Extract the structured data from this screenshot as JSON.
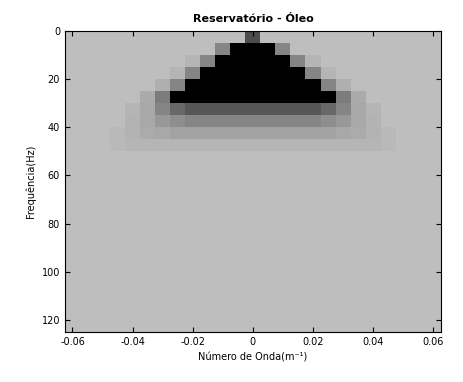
{
  "chart_data": {
    "type": "heatmap",
    "title": "Reservatório - Óleo",
    "x_label": "Número de Onda(m⁻¹)",
    "y_label": "Frequência(Hz)",
    "xlim": [
      -0.0625,
      0.0625
    ],
    "ylim": [
      125,
      0
    ],
    "xticks": [
      -0.06,
      -0.04,
      -0.02,
      0,
      0.02,
      0.04,
      0.06
    ],
    "yticks": [
      0,
      20,
      40,
      60,
      80,
      100,
      120
    ],
    "x": [
      -0.06,
      -0.055,
      -0.05,
      -0.045,
      -0.04,
      -0.035,
      -0.03,
      -0.025,
      -0.02,
      -0.015,
      -0.01,
      -0.005,
      0,
      0.005,
      0.01,
      0.015,
      0.02,
      0.025,
      0.03,
      0.035,
      0.04,
      0.045,
      0.05,
      0.055,
      0.06
    ],
    "y": [
      2.5,
      7.5,
      12.5,
      17.5,
      22.5,
      27.5,
      32.5,
      37.5,
      42.5,
      47.5,
      52.5,
      57.5,
      62.5,
      67.5,
      72.5,
      77.5,
      82.5,
      87.5,
      92.5,
      97.5,
      102.5,
      107.5,
      112.5,
      117.5,
      122.5
    ],
    "cells": [
      [
        0,
        0,
        0,
        0,
        0,
        0,
        0,
        0,
        0,
        0,
        0,
        0,
        0.6,
        0,
        0,
        0,
        0,
        0,
        0,
        0,
        0,
        0,
        0,
        0,
        0
      ],
      [
        0,
        0,
        0,
        0,
        0,
        0,
        0,
        0,
        0,
        0,
        0.3,
        1,
        1,
        1,
        0.3,
        0,
        0,
        0,
        0,
        0,
        0,
        0,
        0,
        0,
        0
      ],
      [
        0,
        0,
        0,
        0,
        0,
        0,
        0,
        0,
        0.05,
        0.3,
        1,
        1,
        1,
        1,
        1,
        0.3,
        0.05,
        0,
        0,
        0,
        0,
        0,
        0,
        0,
        0
      ],
      [
        0,
        0,
        0,
        0,
        0,
        0,
        0,
        0.05,
        0.3,
        1,
        1,
        1,
        1,
        1,
        1,
        1,
        0.3,
        0.05,
        0,
        0,
        0,
        0,
        0,
        0,
        0
      ],
      [
        0,
        0,
        0,
        0,
        0,
        0,
        0.08,
        0.3,
        1,
        1,
        1,
        1,
        1,
        1,
        1,
        1,
        1,
        0.3,
        0.08,
        0,
        0,
        0,
        0,
        0,
        0
      ],
      [
        0,
        0,
        0,
        0,
        0,
        0.1,
        0.35,
        1,
        1,
        1,
        1,
        1,
        1,
        1,
        1,
        1,
        1,
        1,
        0.35,
        0.1,
        0,
        0,
        0,
        0,
        0
      ],
      [
        0,
        0,
        0,
        0,
        0.05,
        0.12,
        0.3,
        0.45,
        0.55,
        0.55,
        0.55,
        0.55,
        0.55,
        0.55,
        0.55,
        0.55,
        0.55,
        0.45,
        0.3,
        0.12,
        0.05,
        0,
        0,
        0,
        0
      ],
      [
        0,
        0,
        0,
        0,
        0.06,
        0.12,
        0.2,
        0.25,
        0.3,
        0.3,
        0.3,
        0.3,
        0.3,
        0.3,
        0.3,
        0.3,
        0.3,
        0.25,
        0.2,
        0.12,
        0.06,
        0,
        0,
        0,
        0
      ],
      [
        0,
        0,
        0,
        0.03,
        0.06,
        0.1,
        0.12,
        0.15,
        0.15,
        0.15,
        0.15,
        0.15,
        0.15,
        0.15,
        0.15,
        0.15,
        0.15,
        0.15,
        0.12,
        0.1,
        0.06,
        0.03,
        0,
        0,
        0
      ],
      [
        0,
        0,
        0,
        0.03,
        0.05,
        0.05,
        0.05,
        0.05,
        0.05,
        0.05,
        0.05,
        0.05,
        0.05,
        0.05,
        0.05,
        0.05,
        0.05,
        0.05,
        0.05,
        0.05,
        0.05,
        0.03,
        0,
        0,
        0
      ],
      [
        0,
        0,
        0,
        0,
        0,
        0,
        0,
        0,
        0,
        0,
        0,
        0,
        0,
        0,
        0,
        0,
        0,
        0,
        0,
        0,
        0,
        0,
        0,
        0,
        0
      ],
      [
        0,
        0,
        0,
        0,
        0,
        0,
        0,
        0,
        0,
        0,
        0,
        0,
        0,
        0,
        0,
        0,
        0,
        0,
        0,
        0,
        0,
        0,
        0,
        0,
        0
      ],
      [
        0,
        0,
        0,
        0,
        0,
        0,
        0,
        0,
        0,
        0,
        0,
        0,
        0,
        0,
        0,
        0,
        0,
        0,
        0,
        0,
        0,
        0,
        0,
        0,
        0
      ],
      [
        0,
        0,
        0,
        0,
        0,
        0,
        0,
        0,
        0,
        0,
        0,
        0,
        0,
        0,
        0,
        0,
        0,
        0,
        0,
        0,
        0,
        0,
        0,
        0,
        0
      ],
      [
        0,
        0,
        0,
        0,
        0,
        0,
        0,
        0,
        0,
        0,
        0,
        0,
        0,
        0,
        0,
        0,
        0,
        0,
        0,
        0,
        0,
        0,
        0,
        0,
        0
      ],
      [
        0,
        0,
        0,
        0,
        0,
        0,
        0,
        0,
        0,
        0,
        0,
        0,
        0,
        0,
        0,
        0,
        0,
        0,
        0,
        0,
        0,
        0,
        0,
        0,
        0
      ],
      [
        0,
        0,
        0,
        0,
        0,
        0,
        0,
        0,
        0,
        0,
        0,
        0,
        0,
        0,
        0,
        0,
        0,
        0,
        0,
        0,
        0,
        0,
        0,
        0,
        0
      ],
      [
        0,
        0,
        0,
        0,
        0,
        0,
        0,
        0,
        0,
        0,
        0,
        0,
        0,
        0,
        0,
        0,
        0,
        0,
        0,
        0,
        0,
        0,
        0,
        0,
        0
      ],
      [
        0,
        0,
        0,
        0,
        0,
        0,
        0,
        0,
        0,
        0,
        0,
        0,
        0,
        0,
        0,
        0,
        0,
        0,
        0,
        0,
        0,
        0,
        0,
        0,
        0
      ],
      [
        0,
        0,
        0,
        0,
        0,
        0,
        0,
        0,
        0,
        0,
        0,
        0,
        0,
        0,
        0,
        0,
        0,
        0,
        0,
        0,
        0,
        0,
        0,
        0,
        0
      ],
      [
        0,
        0,
        0,
        0,
        0,
        0,
        0,
        0,
        0,
        0,
        0,
        0,
        0,
        0,
        0,
        0,
        0,
        0,
        0,
        0,
        0,
        0,
        0,
        0,
        0
      ],
      [
        0,
        0,
        0,
        0,
        0,
        0,
        0,
        0,
        0,
        0,
        0,
        0,
        0,
        0,
        0,
        0,
        0,
        0,
        0,
        0,
        0,
        0,
        0,
        0,
        0
      ],
      [
        0,
        0,
        0,
        0,
        0,
        0,
        0,
        0,
        0,
        0,
        0,
        0,
        0,
        0,
        0,
        0,
        0,
        0,
        0,
        0,
        0,
        0,
        0,
        0,
        0
      ],
      [
        0,
        0,
        0,
        0,
        0,
        0,
        0,
        0,
        0,
        0,
        0,
        0,
        0,
        0,
        0,
        0,
        0,
        0,
        0,
        0,
        0,
        0,
        0,
        0,
        0
      ],
      [
        0,
        0,
        0,
        0,
        0,
        0,
        0,
        0,
        0,
        0,
        0,
        0,
        0,
        0,
        0,
        0,
        0,
        0,
        0,
        0,
        0,
        0,
        0,
        0,
        0
      ]
    ]
  }
}
